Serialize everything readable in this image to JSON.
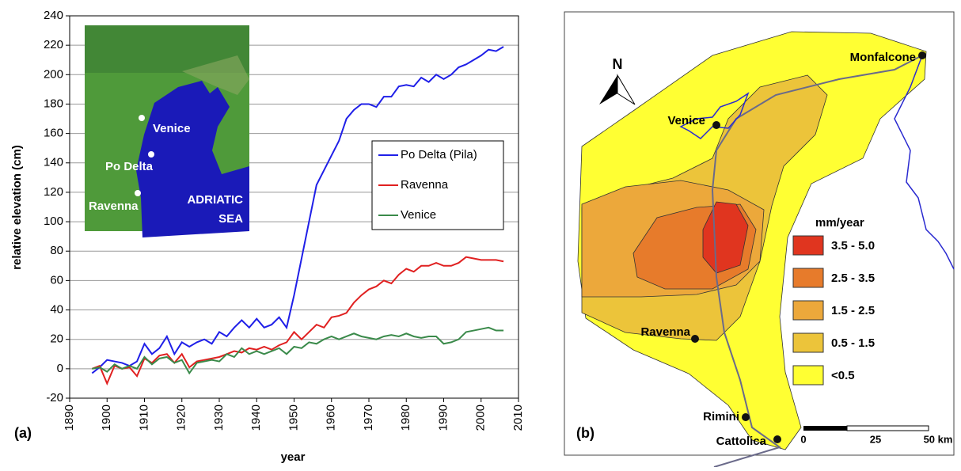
{
  "chart_data": {
    "type": "line",
    "panel_label": "(a)",
    "x_label": "year",
    "y_label": "relative elevation (cm)",
    "annotations": [
      "Venice",
      "Po Delta",
      "Ravenna",
      "ADRIATIC",
      "SEA"
    ],
    "x": [
      1896,
      1898,
      1900,
      1902,
      1904,
      1906,
      1908,
      1910,
      1912,
      1914,
      1916,
      1918,
      1920,
      1922,
      1924,
      1926,
      1928,
      1930,
      1932,
      1934,
      1936,
      1938,
      1940,
      1942,
      1944,
      1946,
      1948,
      1950,
      1952,
      1954,
      1956,
      1958,
      1960,
      1962,
      1964,
      1966,
      1968,
      1970,
      1972,
      1974,
      1976,
      1978,
      1980,
      1982,
      1984,
      1986,
      1988,
      1990,
      1992,
      1994,
      1996,
      1998,
      2000,
      2002,
      2004,
      2006
    ],
    "series": [
      {
        "name": "Po Delta (Pila)",
        "color": "#1f1fe8",
        "values": [
          -3,
          1,
          6,
          5,
          4,
          2,
          5,
          17,
          10,
          14,
          22,
          10,
          18,
          15,
          18,
          20,
          17,
          25,
          22,
          28,
          33,
          28,
          34,
          28,
          30,
          35,
          28,
          50,
          75,
          100,
          125,
          135,
          145,
          155,
          170,
          176,
          180,
          180,
          178,
          185,
          185,
          192,
          193,
          192,
          198,
          195,
          200,
          197,
          200,
          205,
          207,
          210,
          213,
          217,
          216,
          219
        ]
      },
      {
        "name": "Ravenna",
        "color": "#e02020",
        "values": [
          0,
          2,
          -10,
          2,
          0,
          1,
          -5,
          7,
          4,
          9,
          10,
          4,
          10,
          1,
          5,
          6,
          7,
          8,
          10,
          12,
          11,
          14,
          13,
          15,
          13,
          16,
          18,
          25,
          20,
          25,
          30,
          28,
          35,
          36,
          38,
          45,
          50,
          54,
          56,
          60,
          58,
          64,
          68,
          66,
          70,
          70,
          72,
          70,
          70,
          72,
          76,
          75,
          74,
          74,
          74,
          73
        ]
      },
      {
        "name": "Venice",
        "color": "#3a8a4a",
        "values": [
          0,
          1,
          -2,
          3,
          0,
          2,
          0,
          8,
          3,
          7,
          8,
          4,
          6,
          -3,
          4,
          5,
          6,
          5,
          10,
          8,
          14,
          10,
          12,
          10,
          12,
          14,
          10,
          15,
          14,
          18,
          17,
          20,
          22,
          20,
          22,
          24,
          22,
          21,
          20,
          22,
          23,
          22,
          24,
          22,
          21,
          22,
          22,
          17,
          18,
          20,
          25,
          26,
          27,
          28,
          26,
          26
        ]
      }
    ],
    "xlim": [
      1890,
      2010
    ],
    "xticks": [
      1890,
      1900,
      1910,
      1920,
      1930,
      1940,
      1950,
      1960,
      1970,
      1980,
      1990,
      2000,
      2010
    ],
    "ylim": [
      -20,
      240
    ],
    "yticks": [
      -20,
      0,
      20,
      40,
      60,
      80,
      100,
      120,
      140,
      160,
      180,
      200,
      220,
      240
    ],
    "grid": true
  },
  "map": {
    "panel_label": "(b)",
    "north": "N",
    "legend_title": "mm/year",
    "legend": [
      {
        "label": "3.5 - 5.0",
        "color": "#e0351f"
      },
      {
        "label": "2.5 - 3.5",
        "color": "#e77b2b"
      },
      {
        "label": "1.5 - 2.5",
        "color": "#eca83b"
      },
      {
        "label": "0.5 - 1.5",
        "color": "#ecc43a"
      },
      {
        "label": "<0.5",
        "color": "#ffff33"
      }
    ],
    "cities": [
      "Monfalcone",
      "Venice",
      "Ravenna",
      "Rimini",
      "Cattolica"
    ],
    "scale": [
      "0",
      "25",
      "50 km"
    ]
  }
}
